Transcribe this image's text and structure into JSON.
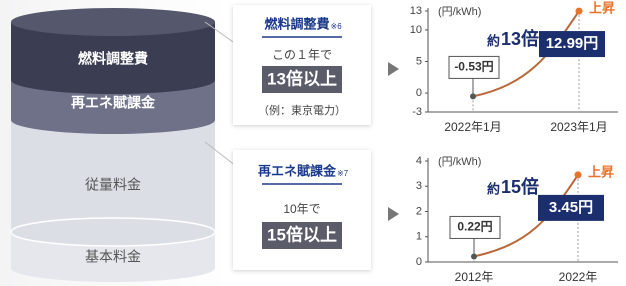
{
  "cylinder": {
    "layers": [
      "燃料調整費",
      "再エネ賦課金",
      "従量料金",
      "基本料金"
    ]
  },
  "callouts": [
    {
      "title": "燃料調整費",
      "note": "※6",
      "period": "この１年で",
      "highlight": "13倍以上",
      "example": "（例：東京電力）"
    },
    {
      "title": "再エネ賦課金",
      "note": "※7",
      "period": "10年で",
      "highlight": "15倍以上"
    }
  ],
  "chart_data": [
    {
      "type": "line",
      "y_label": "(円/kWh)",
      "categories": [
        "2022年1月",
        "2023年1月"
      ],
      "values": [
        -0.53,
        12.99
      ],
      "value_labels": [
        "-0.53円",
        "12.99円"
      ],
      "color": "#b8683a",
      "ylim": [
        -3,
        13
      ],
      "yticks": [
        -3,
        0,
        5,
        10,
        13
      ],
      "annotations": {
        "ratio_prefix": "約",
        "ratio": "13倍",
        "trend": "上昇"
      }
    },
    {
      "type": "line",
      "y_label": "(円/kWh)",
      "categories": [
        "2012年",
        "2022年"
      ],
      "values": [
        0.22,
        3.45
      ],
      "value_labels": [
        "0.22円",
        "3.45円"
      ],
      "color": "#b8683a",
      "ylim": [
        0,
        4
      ],
      "yticks": [
        0,
        1,
        2,
        3,
        4
      ],
      "annotations": {
        "ratio_prefix": "約",
        "ratio": "15倍",
        "trend": "上昇"
      }
    }
  ]
}
